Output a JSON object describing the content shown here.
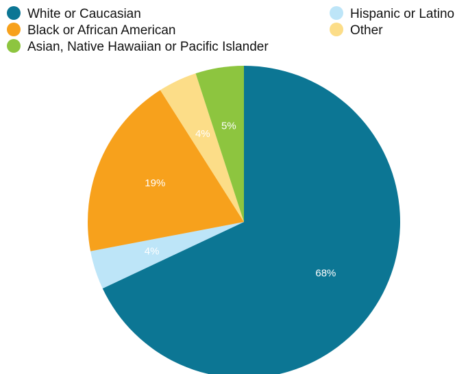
{
  "chart_data": {
    "type": "pie",
    "title": "",
    "start": "top",
    "direction": "clockwise",
    "slices": [
      {
        "label": "White or Caucasian",
        "value": 68,
        "display": "68%",
        "color": "#0c7694"
      },
      {
        "label": "Hispanic or Latino",
        "value": 4,
        "display": "4%",
        "color": "#bde5f8"
      },
      {
        "label": "Black or African American",
        "value": 19,
        "display": "19%",
        "color": "#f7a11c"
      },
      {
        "label": "Other",
        "value": 4,
        "display": "4%",
        "color": "#fcdd88"
      },
      {
        "label": "Asian, Native Hawaiian or Pacific Islander",
        "value": 5,
        "display": "5%",
        "color": "#8dc53f"
      }
    ],
    "legend": {
      "position": "top",
      "columns": [
        [
          "White or Caucasian",
          "Black or African American",
          "Asian, Native Hawaiian or Pacific Islander"
        ],
        [
          "Hispanic or Latino",
          "Other"
        ]
      ]
    }
  }
}
